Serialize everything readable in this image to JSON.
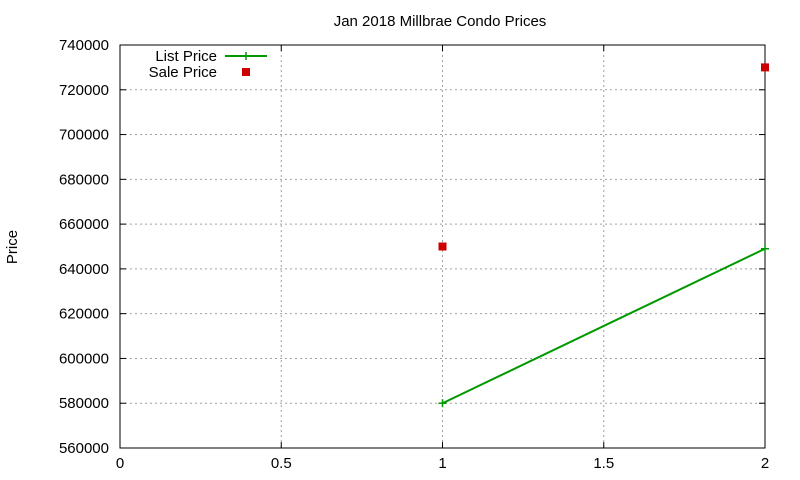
{
  "chart_data": {
    "type": "line",
    "title": "Jan 2018 Millbrae Condo Prices",
    "xlabel": "",
    "ylabel": "Price",
    "xlim": [
      0,
      2
    ],
    "ylim": [
      560000,
      740000
    ],
    "x_ticks": [
      0,
      0.5,
      1,
      1.5,
      2
    ],
    "x_tick_labels": [
      "0",
      "0.5",
      "1",
      "1.5",
      "2"
    ],
    "y_ticks": [
      560000,
      580000,
      600000,
      620000,
      640000,
      660000,
      680000,
      700000,
      720000,
      740000
    ],
    "y_tick_labels": [
      "560000",
      "580000",
      "600000",
      "620000",
      "640000",
      "660000",
      "680000",
      "700000",
      "720000",
      "740000"
    ],
    "grid": true,
    "legend_position": "top-left",
    "series": [
      {
        "name": "List Price",
        "style": "line+marker",
        "marker": "plus",
        "color": "#009900",
        "points": [
          {
            "x": 1,
            "y": 580000
          },
          {
            "x": 2,
            "y": 649000
          }
        ]
      },
      {
        "name": "Sale Price",
        "style": "marker",
        "marker": "square",
        "color": "#cc0000",
        "points": [
          {
            "x": 1,
            "y": 650000
          },
          {
            "x": 2,
            "y": 730000
          }
        ]
      }
    ]
  }
}
